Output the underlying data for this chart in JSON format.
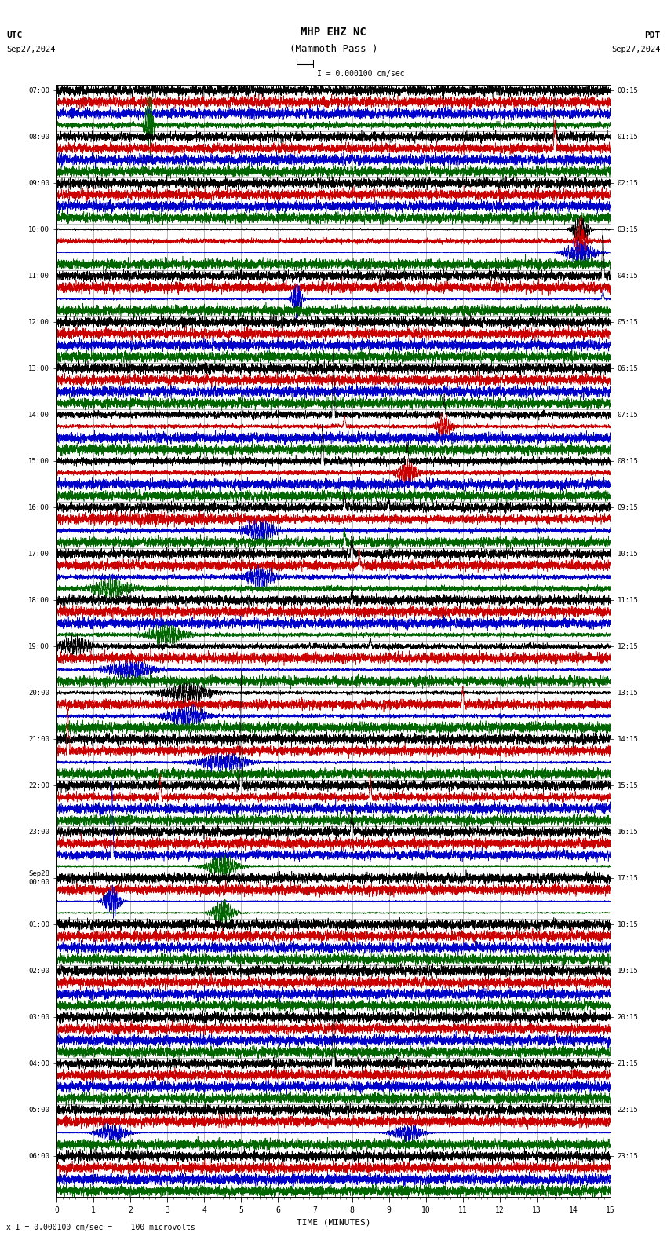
{
  "title_line1": "MHP EHZ NC",
  "title_line2": "(Mammoth Pass )",
  "scale_label": "I = 0.000100 cm/sec",
  "utc_label": "UTC",
  "pdt_label": "PDT",
  "date_left": "Sep27,2024",
  "date_right": "Sep27,2024",
  "bottom_label": "x I = 0.000100 cm/sec =    100 microvolts",
  "xlabel": "TIME (MINUTES)",
  "bg_color": "#ffffff",
  "trace_colors": [
    "#000000",
    "#cc0000",
    "#0000cc",
    "#006600"
  ],
  "grid_color": "#999999",
  "n_rows": 24,
  "traces_per_row": 4,
  "fig_width": 8.5,
  "fig_height": 15.84,
  "noise_seed": 12345,
  "utc_labels": [
    "07:00",
    "08:00",
    "09:00",
    "10:00",
    "11:00",
    "12:00",
    "13:00",
    "14:00",
    "15:00",
    "16:00",
    "17:00",
    "18:00",
    "19:00",
    "20:00",
    "21:00",
    "22:00",
    "23:00",
    "Sep28\n00:00",
    "01:00",
    "02:00",
    "03:00",
    "04:00",
    "05:00",
    "06:00"
  ],
  "pdt_labels": [
    "00:15",
    "01:15",
    "02:15",
    "03:15",
    "04:15",
    "05:15",
    "06:15",
    "07:15",
    "08:15",
    "09:15",
    "10:15",
    "11:15",
    "12:15",
    "13:15",
    "14:15",
    "15:15",
    "16:15",
    "17:15",
    "18:15",
    "19:15",
    "20:15",
    "21:15",
    "22:15",
    "23:15"
  ]
}
